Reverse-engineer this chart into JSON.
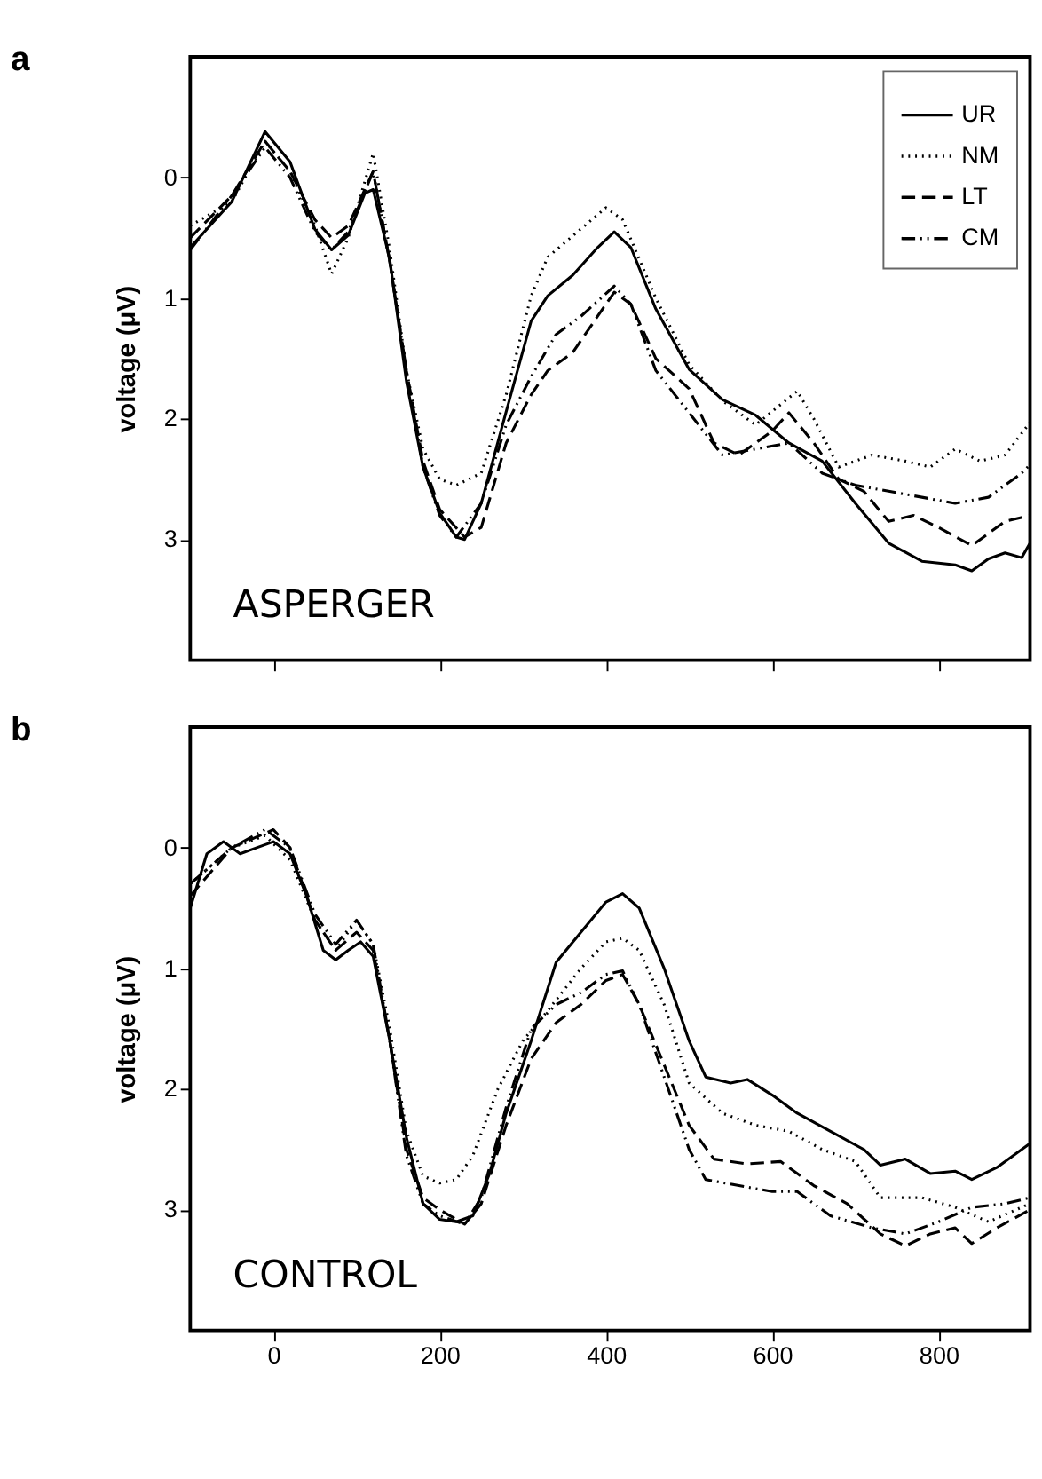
{
  "chart_data": [
    {
      "type": "line",
      "title": "a",
      "ylabel": "voltage (μV)",
      "annotations": [
        "ASPERGER"
      ],
      "xlim": [
        -100,
        910
      ],
      "ylim": [
        4,
        -1
      ],
      "xticks": [
        0,
        200,
        400,
        600,
        800
      ],
      "yticks": [
        0,
        1,
        2,
        3
      ],
      "tick_labels": "y",
      "grid": false,
      "legend": "top right",
      "marker": "none",
      "series": [
        {
          "name": "UR",
          "color": "#000000",
          "line_style": "solid",
          "x": [
            -100,
            -50,
            -10,
            20,
            50,
            70,
            90,
            110,
            120,
            140,
            160,
            180,
            200,
            220,
            230,
            250,
            280,
            310,
            330,
            360,
            390,
            410,
            430,
            460,
            500,
            540,
            580,
            620,
            660,
            700,
            740,
            780,
            820,
            840,
            860,
            880,
            900,
            910
          ],
          "values": [
            0.58,
            0.2,
            -0.38,
            -0.13,
            0.43,
            0.6,
            0.48,
            0.13,
            0.1,
            0.68,
            1.69,
            2.4,
            2.78,
            2.98,
            3.0,
            2.7,
            1.94,
            1.19,
            0.98,
            0.81,
            0.58,
            0.45,
            0.58,
            1.09,
            1.59,
            1.84,
            1.97,
            2.2,
            2.35,
            2.7,
            3.03,
            3.18,
            3.21,
            3.26,
            3.16,
            3.11,
            3.15,
            3.03
          ]
        },
        {
          "name": "NM",
          "color": "#000000",
          "line_style": "dotted",
          "x": [
            -100,
            -50,
            -10,
            20,
            50,
            70,
            90,
            120,
            140,
            160,
            180,
            200,
            220,
            250,
            280,
            310,
            330,
            400,
            420,
            460,
            500,
            540,
            580,
            630,
            650,
            680,
            720,
            760,
            790,
            820,
            850,
            880,
            910
          ],
          "values": [
            0.4,
            0.2,
            -0.3,
            -0.05,
            0.4,
            0.8,
            0.5,
            -0.2,
            0.6,
            1.6,
            2.25,
            2.5,
            2.55,
            2.45,
            1.8,
            0.98,
            0.66,
            0.25,
            0.35,
            1.0,
            1.55,
            1.85,
            2.05,
            1.77,
            2.0,
            2.4,
            2.3,
            2.35,
            2.4,
            2.25,
            2.35,
            2.3,
            2.03
          ]
        },
        {
          "name": "LT",
          "color": "#000000",
          "line_style": "dashed",
          "x": [
            -100,
            -50,
            -10,
            20,
            50,
            70,
            90,
            120,
            140,
            160,
            180,
            200,
            230,
            250,
            280,
            310,
            330,
            360,
            390,
            410,
            430,
            460,
            500,
            530,
            560,
            600,
            620,
            650,
            680,
            710,
            740,
            770,
            800,
            840,
            880,
            910
          ],
          "values": [
            0.5,
            0.15,
            -0.3,
            -0.05,
            0.35,
            0.5,
            0.4,
            -0.05,
            0.7,
            1.6,
            2.35,
            2.75,
            2.98,
            2.9,
            2.2,
            1.8,
            1.6,
            1.45,
            1.15,
            0.95,
            1.05,
            1.5,
            1.75,
            2.2,
            2.3,
            2.1,
            1.95,
            2.2,
            2.5,
            2.6,
            2.85,
            2.8,
            2.9,
            3.05,
            2.85,
            2.8
          ]
        },
        {
          "name": "CM",
          "color": "#000000",
          "line_style": "dashdotdot",
          "x": [
            -100,
            -50,
            -10,
            20,
            50,
            70,
            90,
            120,
            140,
            160,
            180,
            200,
            220,
            250,
            280,
            310,
            340,
            370,
            410,
            430,
            460,
            500,
            540,
            580,
            620,
            660,
            700,
            740,
            780,
            820,
            860,
            900,
            910
          ],
          "values": [
            0.6,
            0.15,
            -0.25,
            0,
            0.45,
            0.6,
            0.45,
            -0.05,
            0.7,
            1.6,
            2.4,
            2.8,
            2.98,
            2.7,
            2.05,
            1.65,
            1.3,
            1.15,
            0.9,
            1.05,
            1.6,
            1.95,
            2.3,
            2.25,
            2.2,
            2.45,
            2.55,
            2.6,
            2.65,
            2.7,
            2.65,
            2.45,
            2.38
          ]
        }
      ]
    },
    {
      "type": "line",
      "title": "b",
      "ylabel": "voltage (μV)",
      "annotations": [
        "CONTROL"
      ],
      "xlim": [
        -100,
        910
      ],
      "ylim": [
        4,
        -1
      ],
      "xticks": [
        0,
        200,
        400,
        600,
        800
      ],
      "yticks": [
        0,
        1,
        2,
        3
      ],
      "grid": false,
      "marker": "none",
      "series": [
        {
          "color": "#000000",
          "line_style": "solid",
          "x": [
            -100,
            -80,
            -60,
            -40,
            -20,
            0,
            20,
            40,
            60,
            75,
            90,
            105,
            120,
            140,
            160,
            180,
            200,
            220,
            240,
            260,
            280,
            310,
            340,
            370,
            400,
            420,
            440,
            470,
            500,
            520,
            550,
            570,
            600,
            630,
            670,
            710,
            730,
            760,
            790,
            820,
            840,
            870,
            910
          ],
          "values": [
            0.5,
            0.05,
            -0.05,
            0.05,
            0.0,
            -0.05,
            0.05,
            0.4,
            0.85,
            0.93,
            0.85,
            0.78,
            0.9,
            1.6,
            2.4,
            2.95,
            3.08,
            3.1,
            3.05,
            2.7,
            2.2,
            1.6,
            0.95,
            0.7,
            0.45,
            0.38,
            0.5,
            1.0,
            1.6,
            1.9,
            1.95,
            1.92,
            2.05,
            2.2,
            2.35,
            2.5,
            2.63,
            2.58,
            2.7,
            2.68,
            2.75,
            2.65,
            2.45
          ]
        },
        {
          "color": "#000000",
          "line_style": "dotted",
          "x": [
            -100,
            -50,
            -10,
            20,
            50,
            75,
            100,
            120,
            140,
            160,
            180,
            200,
            220,
            240,
            270,
            300,
            330,
            370,
            400,
            420,
            440,
            470,
            500,
            540,
            580,
            620,
            660,
            700,
            730,
            780,
            820,
            860,
            910
          ],
          "values": [
            0.3,
            0.0,
            -0.1,
            0.1,
            0.6,
            0.85,
            0.6,
            0.8,
            1.5,
            2.35,
            2.72,
            2.78,
            2.75,
            2.55,
            2.0,
            1.6,
            1.35,
            1.0,
            0.78,
            0.75,
            0.85,
            1.3,
            1.95,
            2.2,
            2.3,
            2.35,
            2.5,
            2.6,
            2.9,
            2.9,
            2.98,
            3.1,
            2.95
          ]
        },
        {
          "color": "#000000",
          "line_style": "dashed",
          "x": [
            -100,
            -50,
            0,
            20,
            50,
            75,
            100,
            120,
            140,
            160,
            180,
            200,
            230,
            250,
            280,
            310,
            340,
            370,
            400,
            420,
            440,
            470,
            500,
            530,
            570,
            610,
            650,
            690,
            730,
            760,
            790,
            820,
            840,
            870,
            910
          ],
          "values": [
            0.4,
            0.0,
            -0.15,
            0.0,
            0.6,
            0.85,
            0.7,
            0.85,
            1.6,
            2.5,
            2.9,
            3.0,
            3.12,
            2.95,
            2.3,
            1.75,
            1.45,
            1.3,
            1.1,
            1.05,
            1.3,
            1.8,
            2.3,
            2.58,
            2.62,
            2.6,
            2.8,
            2.95,
            3.2,
            3.3,
            3.2,
            3.15,
            3.28,
            3.15,
            3.0
          ]
        },
        {
          "color": "#000000",
          "line_style": "dashdotdot",
          "x": [
            -100,
            -50,
            -10,
            20,
            50,
            75,
            100,
            120,
            140,
            160,
            180,
            200,
            230,
            250,
            280,
            310,
            340,
            370,
            400,
            420,
            440,
            470,
            500,
            520,
            560,
            600,
            630,
            670,
            720,
            760,
            800,
            840,
            880,
            910
          ],
          "values": [
            0.3,
            0.0,
            -0.15,
            0.0,
            0.55,
            0.8,
            0.6,
            0.8,
            1.6,
            2.55,
            2.95,
            3.05,
            3.12,
            2.9,
            2.15,
            1.5,
            1.3,
            1.2,
            1.05,
            1.02,
            1.3,
            1.9,
            2.5,
            2.75,
            2.8,
            2.85,
            2.85,
            3.05,
            3.15,
            3.2,
            3.1,
            2.98,
            2.95,
            2.9
          ]
        }
      ]
    }
  ]
}
